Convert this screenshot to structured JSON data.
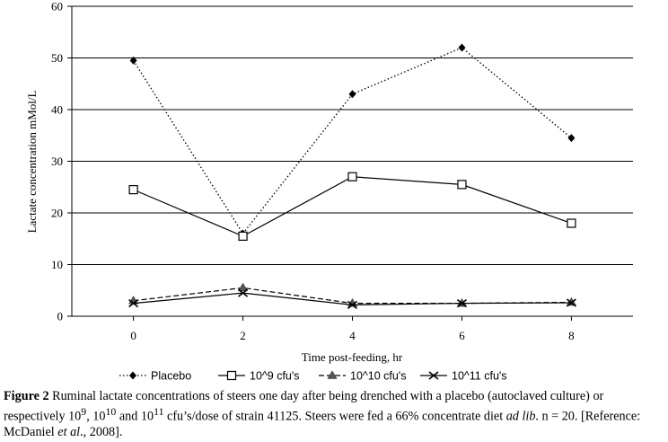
{
  "chart_data": {
    "type": "line",
    "title": "",
    "xlabel": "Time post-feeding, hr",
    "ylabel": "Lactate concentration mMol/L",
    "x": [
      0,
      2,
      4,
      6,
      8
    ],
    "x_ticks": [
      "0",
      "2",
      "4",
      "6",
      "8"
    ],
    "ylim": [
      0,
      60
    ],
    "y_ticks": [
      "0",
      "10",
      "20",
      "30",
      "40",
      "50",
      "60"
    ],
    "grid": "horizontal",
    "legend_position": "bottom",
    "series": [
      {
        "name": "Placebo",
        "values": [
          49.5,
          16,
          43,
          52,
          34.5
        ],
        "line": "dotted",
        "marker": "diamond",
        "color": "#000000"
      },
      {
        "name": "10^9 cfu's",
        "values": [
          24.5,
          15.5,
          27,
          25.5,
          18
        ],
        "line": "solid",
        "marker": "open-square",
        "color": "#000000"
      },
      {
        "name": "10^10 cfu's",
        "values": [
          3,
          5.5,
          2.5,
          2.5,
          2.7
        ],
        "line": "dashed",
        "marker": "triangle",
        "color": "#000000"
      },
      {
        "name": "10^11 cfu's",
        "values": [
          2.5,
          4.5,
          2.2,
          2.5,
          2.6
        ],
        "line": "solid",
        "marker": "cross",
        "color": "#000000"
      }
    ]
  },
  "caption": {
    "label": "Figure 2",
    "part1": " Ruminal lactate concentrations of steers one day after being drenched with a placebo (autoclaved culture) or respectively 10",
    "sup1": "9",
    "part2": ", 10",
    "sup2": "10",
    "part3": " and 10",
    "sup3": "11",
    "part4": " cfu’s/dose of strain 41125. Steers were fed a 66% concentrate diet ",
    "italic1": "ad lib",
    "part5": ". n = 20. [Reference: McDaniel ",
    "italic2": "et al",
    "part6": "., 2008]."
  }
}
